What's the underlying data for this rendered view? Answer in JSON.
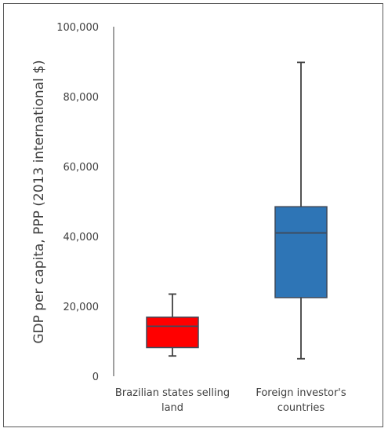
{
  "chart_data": {
    "type": "boxplot",
    "title": "",
    "xlabel": "",
    "ylabel": "GDP per capita, PPP (2013 international $)",
    "ylim": [
      0,
      100000
    ],
    "yticks": [
      {
        "value": 0,
        "label": "0"
      },
      {
        "value": 20000,
        "label": "20,000"
      },
      {
        "value": 40000,
        "label": "40,000"
      },
      {
        "value": 60000,
        "label": "60,000"
      },
      {
        "value": 80000,
        "label": "80,000"
      },
      {
        "value": 100000,
        "label": "100,000"
      }
    ],
    "grid": false,
    "legend": "none",
    "categories": [
      {
        "lines": [
          "Brazilian states selling",
          "land"
        ]
      },
      {
        "lines": [
          "Foreign investor's",
          "countries"
        ]
      }
    ],
    "boxes": [
      {
        "min": 5800,
        "q1": 8200,
        "median": 14300,
        "q3": 16900,
        "max": 23500,
        "color": "#ff0000"
      },
      {
        "min": 5000,
        "q1": 22500,
        "median": 41000,
        "q3": 48500,
        "max": 89800,
        "color": "#2e75b6"
      }
    ],
    "colors": {
      "box_edge": "#3f4a5a",
      "whisker": "#404040",
      "axis": "#404040",
      "frame": "#595959"
    }
  }
}
